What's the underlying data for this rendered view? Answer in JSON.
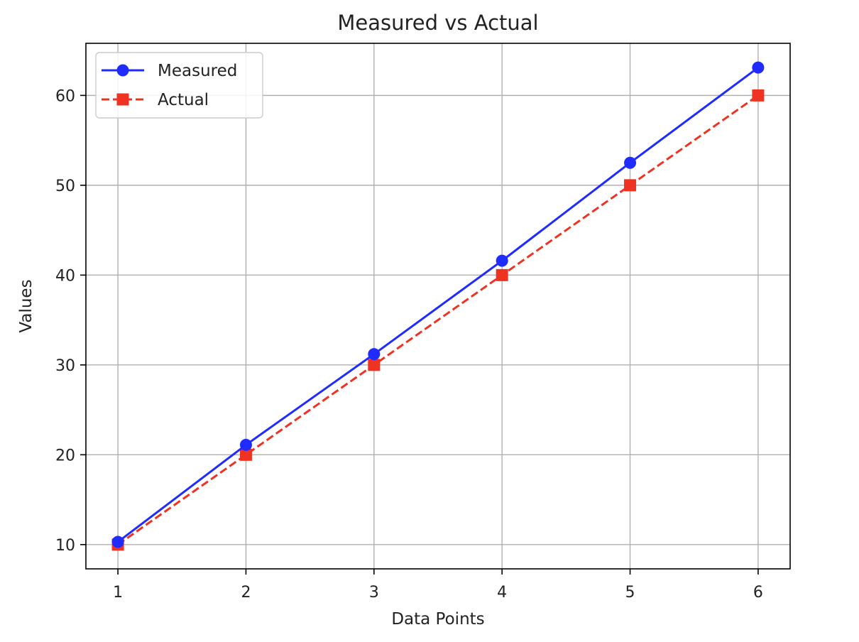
{
  "chart_data": {
    "type": "line",
    "title": "Measured vs Actual",
    "xlabel": "Data Points",
    "ylabel": "Values",
    "x": [
      1,
      2,
      3,
      4,
      5,
      6
    ],
    "xlim": [
      0.75,
      6.25
    ],
    "ylim": [
      7.3,
      65.8
    ],
    "xticks": [
      1,
      2,
      3,
      4,
      5,
      6
    ],
    "yticks": [
      10,
      20,
      30,
      40,
      50,
      60
    ],
    "grid": true,
    "legend_position": "top-left",
    "series": [
      {
        "name": "Measured",
        "values": [
          10.3,
          21.1,
          31.2,
          41.6,
          52.5,
          63.1
        ],
        "color": "#1f2bff",
        "linestyle": "solid",
        "marker": "circle"
      },
      {
        "name": "Actual",
        "values": [
          10,
          20,
          30,
          40,
          50,
          60
        ],
        "color": "#ee3322",
        "linestyle": "dashed",
        "marker": "square"
      }
    ]
  }
}
